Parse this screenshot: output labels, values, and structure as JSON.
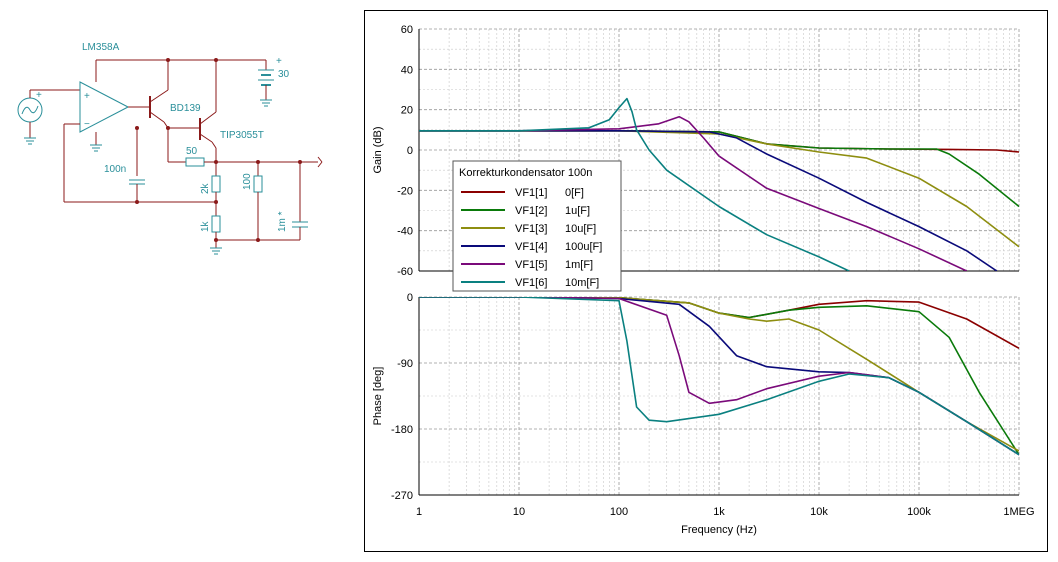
{
  "schematic": {
    "opamp_label": "LM358A",
    "q1_label": "BD139",
    "q2_label": "TIP3055T",
    "battery_label": "30",
    "r_base_label": "50",
    "r_2k_label": "2k",
    "r_1k_label": "1k",
    "r_100_label": "100",
    "c_100n_label": "100n",
    "c_load_label": "1m *",
    "plus_sign": "+",
    "minus_sign": "−"
  },
  "chart_data": [
    {
      "type": "line",
      "title": "",
      "xlabel": "",
      "ylabel": "Gain (dB)",
      "xscale": "log",
      "xlim": [
        1,
        1000000
      ],
      "ylim": [
        -60,
        60
      ],
      "yticks": [
        "60",
        "40",
        "20",
        "0",
        "-20",
        "-40",
        "-60"
      ],
      "grid": true,
      "legend": {
        "title": "Korrekturkondensator 100n",
        "placement": "bottom-left",
        "entries": [
          {
            "name": "VF1[1]",
            "value": "0[F]",
            "color": "#8b0000"
          },
          {
            "name": "VF1[2]",
            "value": "1u[F]",
            "color": "#0a7a0a"
          },
          {
            "name": "VF1[3]",
            "value": "10u[F]",
            "color": "#8e8e10"
          },
          {
            "name": "VF1[4]",
            "value": "100u[F]",
            "color": "#0a0a7a"
          },
          {
            "name": "VF1[5]",
            "value": "1m[F]",
            "color": "#7a0a7a"
          },
          {
            "name": "VF1[6]",
            "value": "10m[F]",
            "color": "#0a8080"
          }
        ]
      },
      "series": [
        {
          "name": "VF1[1]",
          "color": "#8b0000",
          "x": [
            1,
            10,
            100,
            1000,
            3000,
            10000,
            50000,
            200000,
            600000,
            1000000
          ],
          "y": [
            9.5,
            9.5,
            9.5,
            9,
            3,
            1,
            0.5,
            0.3,
            0,
            -1
          ]
        },
        {
          "name": "VF1[2]",
          "color": "#0a7a0a",
          "x": [
            1,
            10,
            100,
            1000,
            3000,
            10000,
            50000,
            150000,
            200000,
            400000,
            1000000
          ],
          "y": [
            9.5,
            9.5,
            9.5,
            9,
            3,
            1,
            0.5,
            0.5,
            -2,
            -12,
            -28
          ]
        },
        {
          "name": "VF1[3]",
          "color": "#8e8e10",
          "x": [
            1,
            10,
            100,
            1000,
            3000,
            10000,
            30000,
            100000,
            300000,
            1000000
          ],
          "y": [
            9.5,
            9.5,
            9.5,
            8,
            3,
            -1,
            -4,
            -14,
            -28,
            -48
          ]
        },
        {
          "name": "VF1[4]",
          "color": "#0a0a7a",
          "x": [
            1,
            10,
            100,
            800,
            1500,
            3000,
            10000,
            30000,
            100000,
            300000,
            600000
          ],
          "y": [
            9.5,
            9.5,
            9.5,
            9,
            6,
            -2,
            -14,
            -26,
            -38,
            -50,
            -60
          ]
        },
        {
          "name": "VF1[5]",
          "color": "#7a0a7a",
          "x": [
            1,
            10,
            100,
            250,
            400,
            500,
            700,
            1000,
            3000,
            10000,
            30000,
            100000,
            300000
          ],
          "y": [
            9.5,
            9.5,
            10.5,
            13,
            16.5,
            14,
            6,
            -3,
            -19,
            -29,
            -38,
            -49,
            -60
          ]
        },
        {
          "name": "VF1[6]",
          "color": "#0a8080",
          "x": [
            1,
            10,
            50,
            80,
            100,
            120,
            135,
            150,
            200,
            300,
            1000,
            3000,
            10000,
            20000
          ],
          "y": [
            9.5,
            9.5,
            11,
            15,
            21,
            25.5,
            19,
            10,
            0,
            -10,
            -28,
            -42,
            -53,
            -60
          ]
        }
      ]
    },
    {
      "type": "line",
      "title": "",
      "xlabel": "Frequency (Hz)",
      "ylabel": "Phase [deg]",
      "xscale": "log",
      "xlim": [
        1,
        1000000
      ],
      "ylim": [
        -270,
        0
      ],
      "xticks": [
        "1",
        "10",
        "100",
        "1k",
        "10k",
        "100k",
        "1MEG"
      ],
      "yticks": [
        "0",
        "-90",
        "-180",
        "-270"
      ],
      "grid": true,
      "series": [
        {
          "name": "VF1[1]",
          "color": "#8b0000",
          "x": [
            1,
            10,
            100,
            500,
            1000,
            2000,
            5000,
            10000,
            30000,
            100000,
            300000,
            1000000
          ],
          "y": [
            0,
            0,
            -1,
            -8,
            -22,
            -28,
            -18,
            -10,
            -5,
            -7,
            -30,
            -70
          ]
        },
        {
          "name": "VF1[2]",
          "color": "#0a7a0a",
          "x": [
            1,
            10,
            100,
            500,
            1000,
            2000,
            5000,
            10000,
            30000,
            100000,
            200000,
            400000,
            1000000
          ],
          "y": [
            0,
            0,
            -1,
            -8,
            -22,
            -28,
            -18,
            -14,
            -12,
            -20,
            -55,
            -130,
            -215
          ]
        },
        {
          "name": "VF1[3]",
          "color": "#8e8e10",
          "x": [
            1,
            10,
            100,
            500,
            1000,
            2000,
            3000,
            5000,
            10000,
            30000,
            100000,
            300000,
            1000000
          ],
          "y": [
            0,
            0,
            -1,
            -8,
            -22,
            -30,
            -33,
            -30,
            -45,
            -85,
            -130,
            -170,
            -210
          ]
        },
        {
          "name": "VF1[4]",
          "color": "#0a0a7a",
          "x": [
            1,
            10,
            100,
            400,
            800,
            1500,
            3000,
            10000,
            20000,
            50000,
            100000,
            300000,
            1000000
          ],
          "y": [
            0,
            0,
            -2,
            -10,
            -40,
            -80,
            -95,
            -102,
            -103,
            -110,
            -130,
            -170,
            -215
          ]
        },
        {
          "name": "VF1[5]",
          "color": "#7a0a7a",
          "x": [
            1,
            10,
            100,
            300,
            400,
            500,
            800,
            1500,
            3000,
            10000,
            20000,
            50000,
            100000,
            300000,
            1000000
          ],
          "y": [
            0,
            0,
            -2,
            -25,
            -80,
            -130,
            -145,
            -140,
            -125,
            -108,
            -103,
            -110,
            -130,
            -170,
            -215
          ]
        },
        {
          "name": "VF1[6]",
          "color": "#0a8080",
          "x": [
            1,
            10,
            100,
            120,
            150,
            200,
            300,
            1000,
            3000,
            10000,
            20000,
            50000,
            100000,
            300000,
            1000000
          ],
          "y": [
            0,
            0,
            -5,
            -60,
            -150,
            -168,
            -170,
            -160,
            -140,
            -115,
            -105,
            -110,
            -130,
            -170,
            -215
          ]
        }
      ]
    }
  ]
}
